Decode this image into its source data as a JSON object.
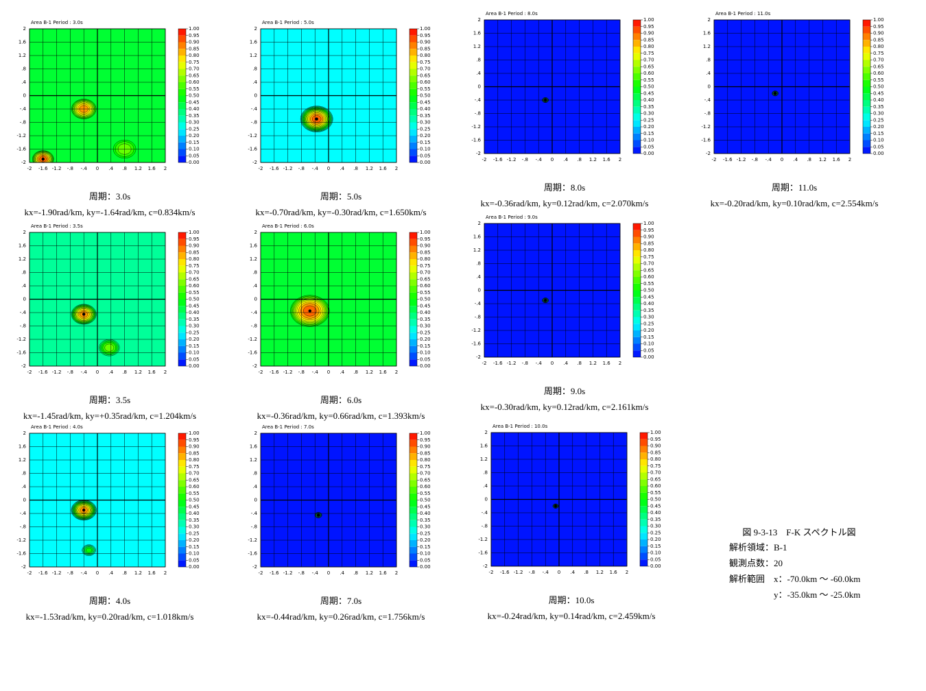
{
  "axis": {
    "lim": [
      -2,
      2
    ],
    "ticks": [
      2,
      1.6,
      1.2,
      {
        "value": 0.8,
        "label": ".8"
      },
      {
        "value": 0.4,
        "label": ".4"
      },
      0,
      {
        "value": -0.4,
        "label": "-.4"
      },
      {
        "value": -0.8,
        "label": "-.8"
      },
      -1.2,
      -1.6,
      -2
    ]
  },
  "colorbar": {
    "ticks": [
      {
        "value": 1,
        "label": "1.00"
      },
      {
        "value": 0.95,
        "label": "0.95"
      },
      {
        "value": 0.9,
        "label": "0.90"
      },
      {
        "value": 0.85,
        "label": "0.85"
      },
      {
        "value": 0.8,
        "label": "0.80"
      },
      {
        "value": 0.75,
        "label": "0.75"
      },
      {
        "value": 0.7,
        "label": "0.70"
      },
      {
        "value": 0.65,
        "label": "0.65"
      },
      {
        "value": 0.6,
        "label": "0.60"
      },
      {
        "value": 0.55,
        "label": "0.55"
      },
      {
        "value": 0.5,
        "label": "0.50"
      },
      {
        "value": 0.45,
        "label": "0.45"
      },
      {
        "value": 0.4,
        "label": "0.40"
      },
      {
        "value": 0.35,
        "label": "0.35"
      },
      {
        "value": 0.3,
        "label": "0.30"
      },
      {
        "value": 0.25,
        "label": "0.25"
      },
      {
        "value": 0.2,
        "label": "0.20"
      },
      {
        "value": 0.15,
        "label": "0.15"
      },
      {
        "value": 0.1,
        "label": "0.10"
      },
      {
        "value": 0.05,
        "label": "0.05"
      },
      {
        "value": 0,
        "label": "0.00"
      }
    ]
  },
  "figures": [
    {
      "header": "Area B-1   Period : 3.0s",
      "period": "周期：3.0s",
      "result": "kx=-1.90rad/km, ky=-1.64rad/km, c=0.834km/s",
      "base": 0.45,
      "peaks": [
        {
          "x": -0.4,
          "y": -0.4,
          "value": 0.85,
          "spread": 0.35
        },
        {
          "x": -1.6,
          "y": -1.9,
          "value": 0.9,
          "spread": 0.3
        },
        {
          "x": 0.8,
          "y": -1.6,
          "value": 0.6,
          "spread": 0.35
        }
      ]
    },
    {
      "header": "Area B-1   Period : 3.5s",
      "period": "周期：3.5s",
      "result": "kx=-1.45rad/km, ky=+0.35rad/km, c=1.204km/s",
      "base": 0.35,
      "peaks": [
        {
          "x": -0.4,
          "y": -0.45,
          "value": 0.85,
          "spread": 0.35
        },
        {
          "x": 0.35,
          "y": -1.45,
          "value": 0.6,
          "spread": 0.3
        }
      ]
    },
    {
      "header": "Area B-1   Period : 4.0s",
      "period": "周期：4.0s",
      "result": "kx=-1.53rad/km, ky=0.20rad/km, c=1.018km/s",
      "base": 0.25,
      "peaks": [
        {
          "x": -0.4,
          "y": -0.3,
          "value": 0.85,
          "spread": 0.35
        },
        {
          "x": -0.25,
          "y": -1.5,
          "value": 0.5,
          "spread": 0.2
        }
      ]
    },
    {
      "header": "Area B-1   Period : 5.0s",
      "period": "周期：5.0s",
      "result": "kx=-0.70rad/km, ky=-0.30rad/km, c=1.650km/s",
      "base": 0.25,
      "peaks": [
        {
          "x": -0.35,
          "y": -0.7,
          "value": 0.9,
          "spread": 0.45
        }
      ]
    },
    {
      "header": "Area B-1   Period : 6.0s",
      "period": "周期：6.0s",
      "result": "kx=-0.36rad/km, ky=0.66rad/km, c=1.393km/s",
      "base": 0.45,
      "peaks": [
        {
          "x": -0.55,
          "y": -0.35,
          "value": 0.9,
          "spread": 0.55
        }
      ]
    },
    {
      "header": "Area B-1   Period : 7.0s",
      "period": "周期：7.0s",
      "result": "kx=-0.44rad/km, ky=0.26rad/km, c=1.756km/s",
      "base": 0.02,
      "peaks": [
        {
          "x": -0.3,
          "y": -0.45,
          "value": 0.5,
          "spread": 0.1
        }
      ]
    },
    {
      "header": "Area B-1   Period : 8.0s",
      "period": "周期：8.0s",
      "result": "kx=-0.36rad/km, ky=0.12rad/km, c=2.070km/s",
      "base": 0.02,
      "peaks": [
        {
          "x": -0.2,
          "y": -0.4,
          "value": 0.5,
          "spread": 0.09
        }
      ]
    },
    {
      "header": "Area B-1   Period : 9.0s",
      "period": "周期：9.0s",
      "result": "kx=-0.30rad/km, ky=0.12rad/km, c=2.161km/s",
      "base": 0.02,
      "peaks": [
        {
          "x": -0.2,
          "y": -0.3,
          "value": 0.5,
          "spread": 0.09
        }
      ]
    },
    {
      "header": "Area B-1   Period : 10.0s",
      "period": "周期：10.0s",
      "result": "kx=-0.24rad/km, ky=0.14rad/km, c=2.459km/s",
      "base": 0.02,
      "peaks": [
        {
          "x": -0.1,
          "y": -0.2,
          "value": 0.5,
          "spread": 0.08
        }
      ]
    },
    {
      "header": "Area B-1   Period : 11.0s",
      "period": "周期：11.0s",
      "result": "kx=-0.20rad/km, ky=0.10rad/km, c=2.554km/s",
      "base": 0.02,
      "peaks": [
        {
          "x": -0.2,
          "y": -0.2,
          "value": 0.5,
          "spread": 0.09
        }
      ]
    }
  ],
  "caption": {
    "title": "図 9-3-13　F-K スペクトル図",
    "lines": [
      "解析領域：B-1",
      "観測点数：20",
      "解析範囲　x：-70.0km 〜 -60.0km",
      "y：-35.0km 〜 -25.0km"
    ]
  }
}
